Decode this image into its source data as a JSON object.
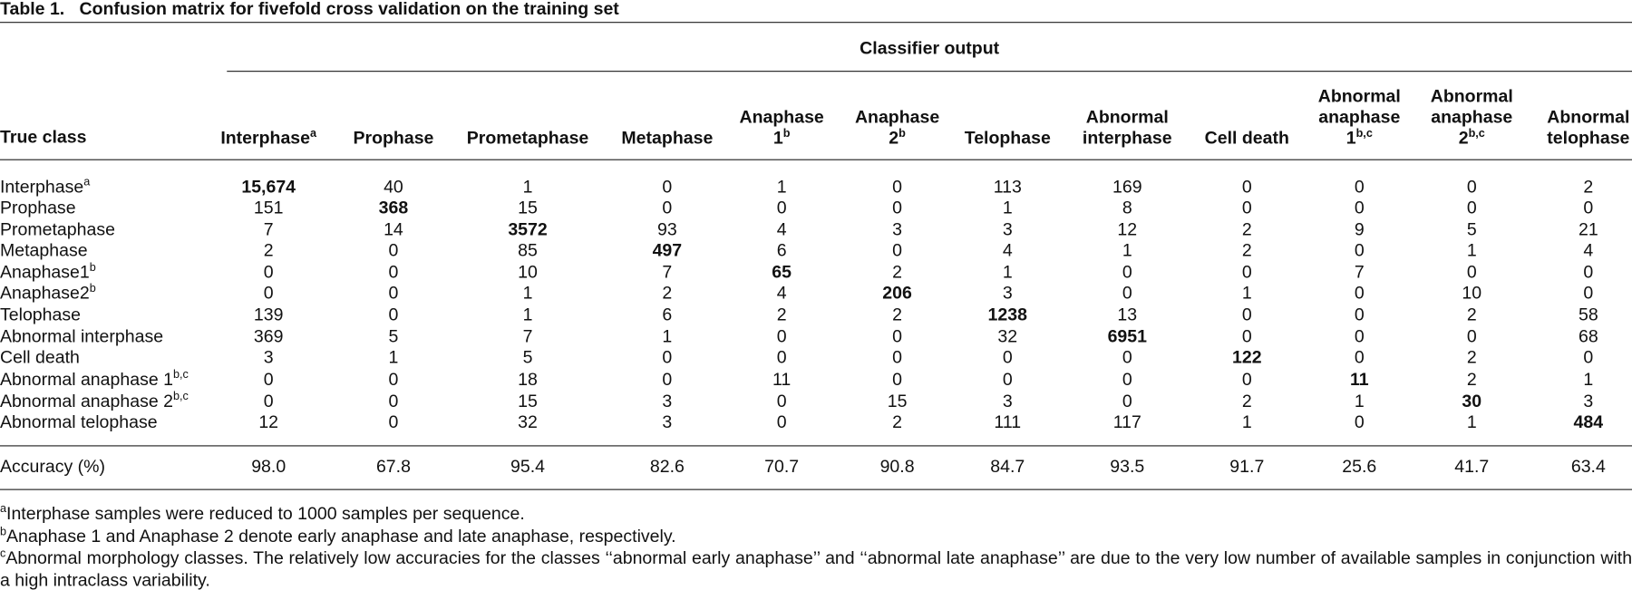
{
  "title": {
    "label": "Table 1.",
    "text": "Confusion matrix for fivefold cross validation on the training set"
  },
  "table": {
    "group_header": "Classifier output",
    "row_header": "True class",
    "columns": [
      {
        "text": "Interphase",
        "sup": "a"
      },
      {
        "text": "Prophase"
      },
      {
        "text": "Prometaphase"
      },
      {
        "text": "Metaphase"
      },
      {
        "text": "Anaphase 1",
        "sup": "b"
      },
      {
        "text": "Anaphase 2",
        "sup": "b"
      },
      {
        "text": "Telophase"
      },
      {
        "text": "Abnormal interphase"
      },
      {
        "text": "Cell death"
      },
      {
        "text": "Abnormal anaphase 1",
        "sup": "b,c"
      },
      {
        "text": "Abnormal anaphase 2",
        "sup": "b,c"
      },
      {
        "text": "Abnormal telophase"
      }
    ],
    "rows": [
      {
        "label": "Interphase",
        "sup": "a",
        "cells": [
          "15,674",
          "40",
          "1",
          "0",
          "1",
          "0",
          "113",
          "169",
          "0",
          "0",
          "0",
          "2"
        ]
      },
      {
        "label": "Prophase",
        "cells": [
          "151",
          "368",
          "15",
          "0",
          "0",
          "0",
          "1",
          "8",
          "0",
          "0",
          "0",
          "0"
        ]
      },
      {
        "label": "Prometaphase",
        "cells": [
          "7",
          "14",
          "3572",
          "93",
          "4",
          "3",
          "3",
          "12",
          "2",
          "9",
          "5",
          "21"
        ]
      },
      {
        "label": "Metaphase",
        "cells": [
          "2",
          "0",
          "85",
          "497",
          "6",
          "0",
          "4",
          "1",
          "2",
          "0",
          "1",
          "4"
        ]
      },
      {
        "label": "Anaphase1",
        "sup": "b",
        "cells": [
          "0",
          "0",
          "10",
          "7",
          "65",
          "2",
          "1",
          "0",
          "0",
          "7",
          "0",
          "0"
        ]
      },
      {
        "label": "Anaphase2",
        "sup": "b",
        "cells": [
          "0",
          "0",
          "1",
          "2",
          "4",
          "206",
          "3",
          "0",
          "1",
          "0",
          "10",
          "0"
        ]
      },
      {
        "label": "Telophase",
        "cells": [
          "139",
          "0",
          "1",
          "6",
          "2",
          "2",
          "1238",
          "13",
          "0",
          "0",
          "2",
          "58"
        ]
      },
      {
        "label": "Abnormal interphase",
        "cells": [
          "369",
          "5",
          "7",
          "1",
          "0",
          "0",
          "32",
          "6951",
          "0",
          "0",
          "0",
          "68"
        ]
      },
      {
        "label": "Cell death",
        "cells": [
          "3",
          "1",
          "5",
          "0",
          "0",
          "0",
          "0",
          "0",
          "122",
          "0",
          "2",
          "0"
        ]
      },
      {
        "label": "Abnormal anaphase 1",
        "sup": "b,c",
        "cells": [
          "0",
          "0",
          "18",
          "0",
          "11",
          "0",
          "0",
          "0",
          "0",
          "11",
          "2",
          "1"
        ]
      },
      {
        "label": "Abnormal anaphase 2",
        "sup": "b,c",
        "cells": [
          "0",
          "0",
          "15",
          "3",
          "0",
          "15",
          "3",
          "0",
          "2",
          "1",
          "30",
          "3"
        ]
      },
      {
        "label": "Abnormal telophase",
        "cells": [
          "12",
          "0",
          "32",
          "3",
          "0",
          "2",
          "111",
          "117",
          "1",
          "0",
          "1",
          "484"
        ]
      }
    ],
    "accuracy": {
      "label": "Accuracy (%)",
      "cells": [
        "98.0",
        "67.8",
        "95.4",
        "82.6",
        "70.7",
        "90.8",
        "84.7",
        "93.5",
        "91.7",
        "25.6",
        "41.7",
        "63.4"
      ]
    }
  },
  "footnotes": [
    {
      "mark": "a",
      "text": "Interphase samples were reduced to 1000 samples per sequence."
    },
    {
      "mark": "b",
      "text": "Anaphase 1 and Anaphase 2 denote early anaphase and late anaphase, respectively."
    },
    {
      "mark": "c",
      "text": "Abnormal morphology classes. The relatively low accuracies for the classes ‘‘abnormal early anaphase’’ and ‘‘abnormal late anaphase’’ are due to the very low number of available samples in conjunction with a high intraclass variability."
    }
  ]
}
